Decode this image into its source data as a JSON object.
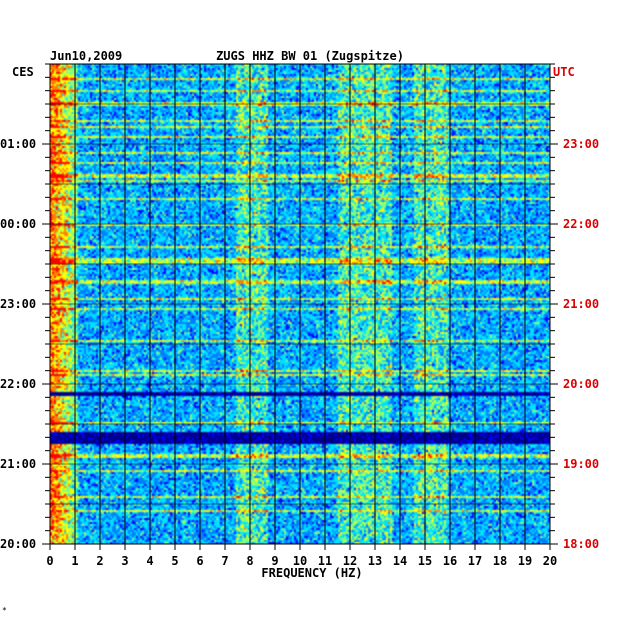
{
  "chart_data": {
    "type": "heatmap",
    "title": "ZUGS HHZ BW 01 (Zugspitze)",
    "date": "Jun10,2009",
    "left_timezone": "CES",
    "right_timezone": "UTC",
    "xlabel": "FREQUENCY (HZ)",
    "xlim": [
      0,
      20
    ],
    "x_ticks": [
      "0",
      "1",
      "2",
      "3",
      "4",
      "5",
      "6",
      "7",
      "8",
      "9",
      "10",
      "11",
      "12",
      "13",
      "14",
      "15",
      "16",
      "17",
      "18",
      "19",
      "20"
    ],
    "left_time_ticks": [
      "01:00",
      "00:00",
      "23:00",
      "22:00",
      "21:00",
      "20:00"
    ],
    "right_time_ticks": [
      "23:00",
      "22:00",
      "21:00",
      "20:00",
      "19:00",
      "18:00"
    ],
    "colors": {
      "background": "#0000cc",
      "grid": "#000000",
      "left_labels": "#000000",
      "right_labels": "#dd0000"
    },
    "colormap": [
      "#00008b",
      "#0000ff",
      "#0080ff",
      "#00e0ff",
      "#80ff80",
      "#ffff00",
      "#ff8000",
      "#ff0000"
    ]
  },
  "footnote": "*"
}
